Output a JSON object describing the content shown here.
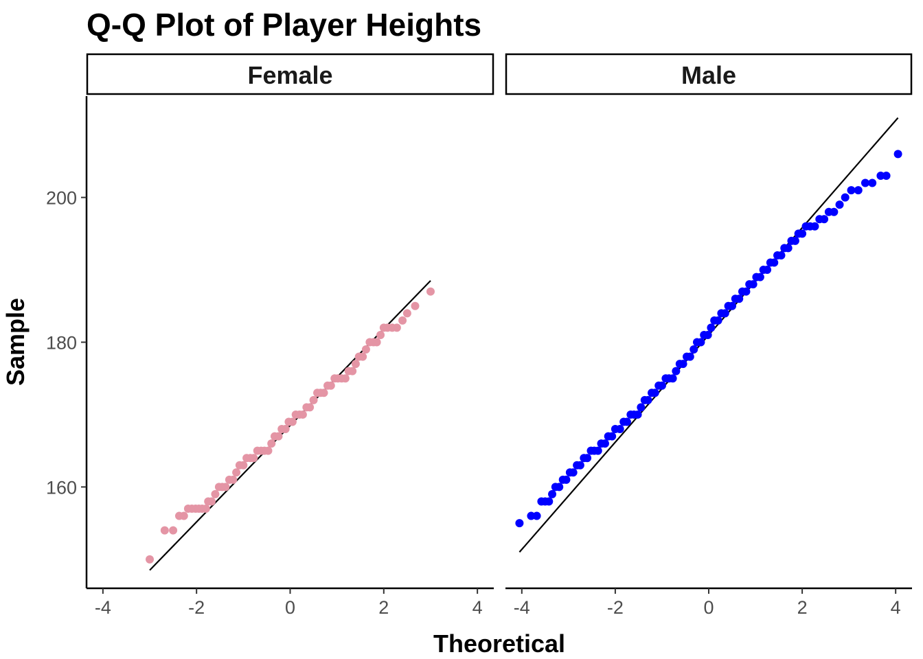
{
  "chart_data": {
    "type": "scatter",
    "title": "Q-Q Plot of Player Heights",
    "xlabel": "Theoretical",
    "ylabel": "Sample",
    "xlim": [
      -4.35,
      4.35
    ],
    "ylim": [
      146,
      214
    ],
    "xticks": [
      -4,
      -2,
      0,
      2,
      4
    ],
    "yticks": [
      160,
      180,
      200
    ],
    "grid": false,
    "legend": "none",
    "panels": [
      {
        "name": "Female",
        "color": "#E495A5",
        "points": [
          [
            -3.0,
            150
          ],
          [
            -2.68,
            154
          ],
          [
            -2.5,
            154
          ],
          [
            -2.37,
            156
          ],
          [
            -2.27,
            156
          ],
          [
            -2.18,
            157
          ],
          [
            -2.1,
            157
          ],
          [
            -2.02,
            157
          ],
          [
            -1.95,
            157
          ],
          [
            -1.88,
            157
          ],
          [
            -1.8,
            157
          ],
          [
            -1.75,
            158
          ],
          [
            -1.68,
            158
          ],
          [
            -1.6,
            159
          ],
          [
            -1.52,
            160
          ],
          [
            -1.45,
            160
          ],
          [
            -1.38,
            160
          ],
          [
            -1.3,
            161
          ],
          [
            -1.22,
            161
          ],
          [
            -1.15,
            162
          ],
          [
            -1.08,
            163
          ],
          [
            -1.0,
            163
          ],
          [
            -0.93,
            164
          ],
          [
            -0.85,
            164
          ],
          [
            -0.78,
            164
          ],
          [
            -0.7,
            165
          ],
          [
            -0.62,
            165
          ],
          [
            -0.55,
            165
          ],
          [
            -0.47,
            165
          ],
          [
            -0.4,
            166
          ],
          [
            -0.33,
            167
          ],
          [
            -0.25,
            167
          ],
          [
            -0.18,
            168
          ],
          [
            -0.1,
            168
          ],
          [
            -0.03,
            169
          ],
          [
            0.05,
            169
          ],
          [
            0.12,
            170
          ],
          [
            0.2,
            170
          ],
          [
            0.27,
            170
          ],
          [
            0.35,
            171
          ],
          [
            0.42,
            171
          ],
          [
            0.5,
            172
          ],
          [
            0.58,
            173
          ],
          [
            0.65,
            173
          ],
          [
            0.72,
            173
          ],
          [
            0.8,
            174
          ],
          [
            0.87,
            174
          ],
          [
            0.95,
            175
          ],
          [
            1.02,
            175
          ],
          [
            1.1,
            175
          ],
          [
            1.18,
            175
          ],
          [
            1.25,
            176
          ],
          [
            1.33,
            176
          ],
          [
            1.4,
            177
          ],
          [
            1.47,
            178
          ],
          [
            1.55,
            178
          ],
          [
            1.62,
            179
          ],
          [
            1.7,
            180
          ],
          [
            1.78,
            180
          ],
          [
            1.85,
            180
          ],
          [
            1.93,
            181
          ],
          [
            2.0,
            182
          ],
          [
            2.08,
            182
          ],
          [
            2.18,
            182
          ],
          [
            2.28,
            182
          ],
          [
            2.4,
            183
          ],
          [
            2.5,
            184
          ],
          [
            2.67,
            185
          ],
          [
            3.0,
            187
          ]
        ],
        "line": {
          "x": [
            -3.0,
            3.0
          ],
          "y": [
            148.5,
            188.5
          ]
        }
      },
      {
        "name": "Male",
        "color": "#0000FF",
        "points": [
          [
            -4.05,
            155
          ],
          [
            -3.8,
            156
          ],
          [
            -3.68,
            156
          ],
          [
            -3.58,
            158
          ],
          [
            -3.5,
            158
          ],
          [
            -3.42,
            158
          ],
          [
            -3.35,
            159
          ],
          [
            -3.28,
            160
          ],
          [
            -3.2,
            160
          ],
          [
            -3.12,
            161
          ],
          [
            -3.05,
            161
          ],
          [
            -2.97,
            162
          ],
          [
            -2.9,
            162
          ],
          [
            -2.82,
            163
          ],
          [
            -2.75,
            163
          ],
          [
            -2.67,
            164
          ],
          [
            -2.6,
            164
          ],
          [
            -2.52,
            165
          ],
          [
            -2.45,
            165
          ],
          [
            -2.37,
            165
          ],
          [
            -2.3,
            166
          ],
          [
            -2.22,
            166
          ],
          [
            -2.15,
            167
          ],
          [
            -2.07,
            167
          ],
          [
            -2.0,
            168
          ],
          [
            -1.9,
            168
          ],
          [
            -1.82,
            169
          ],
          [
            -1.75,
            169
          ],
          [
            -1.67,
            170
          ],
          [
            -1.6,
            170
          ],
          [
            -1.52,
            170
          ],
          [
            -1.45,
            171
          ],
          [
            -1.37,
            172
          ],
          [
            -1.3,
            172
          ],
          [
            -1.22,
            173
          ],
          [
            -1.15,
            173
          ],
          [
            -1.07,
            174
          ],
          [
            -1.0,
            174
          ],
          [
            -0.92,
            175
          ],
          [
            -0.85,
            175
          ],
          [
            -0.77,
            175
          ],
          [
            -0.7,
            176
          ],
          [
            -0.62,
            177
          ],
          [
            -0.55,
            177
          ],
          [
            -0.47,
            178
          ],
          [
            -0.4,
            178
          ],
          [
            -0.32,
            179
          ],
          [
            -0.25,
            180
          ],
          [
            -0.17,
            180
          ],
          [
            -0.1,
            181
          ],
          [
            -0.02,
            181
          ],
          [
            0.05,
            182
          ],
          [
            0.12,
            183
          ],
          [
            0.2,
            183
          ],
          [
            0.27,
            184
          ],
          [
            0.35,
            184
          ],
          [
            0.42,
            185
          ],
          [
            0.5,
            185
          ],
          [
            0.57,
            186
          ],
          [
            0.65,
            186
          ],
          [
            0.72,
            187
          ],
          [
            0.8,
            187
          ],
          [
            0.87,
            188
          ],
          [
            0.95,
            188
          ],
          [
            1.02,
            189
          ],
          [
            1.1,
            189
          ],
          [
            1.17,
            190
          ],
          [
            1.25,
            190
          ],
          [
            1.32,
            191
          ],
          [
            1.4,
            191
          ],
          [
            1.47,
            192
          ],
          [
            1.55,
            192
          ],
          [
            1.62,
            193
          ],
          [
            1.7,
            193
          ],
          [
            1.77,
            194
          ],
          [
            1.85,
            194
          ],
          [
            1.92,
            195
          ],
          [
            2.0,
            195
          ],
          [
            2.08,
            196
          ],
          [
            2.17,
            196
          ],
          [
            2.27,
            196
          ],
          [
            2.37,
            197
          ],
          [
            2.47,
            197
          ],
          [
            2.57,
            198
          ],
          [
            2.68,
            198
          ],
          [
            2.8,
            199
          ],
          [
            2.92,
            200
          ],
          [
            3.05,
            201
          ],
          [
            3.2,
            201
          ],
          [
            3.35,
            202
          ],
          [
            3.5,
            202
          ],
          [
            3.68,
            203
          ],
          [
            3.8,
            203
          ],
          [
            4.05,
            206
          ]
        ],
        "line": {
          "x": [
            -4.05,
            4.05
          ],
          "y": [
            151,
            211
          ]
        }
      }
    ]
  }
}
